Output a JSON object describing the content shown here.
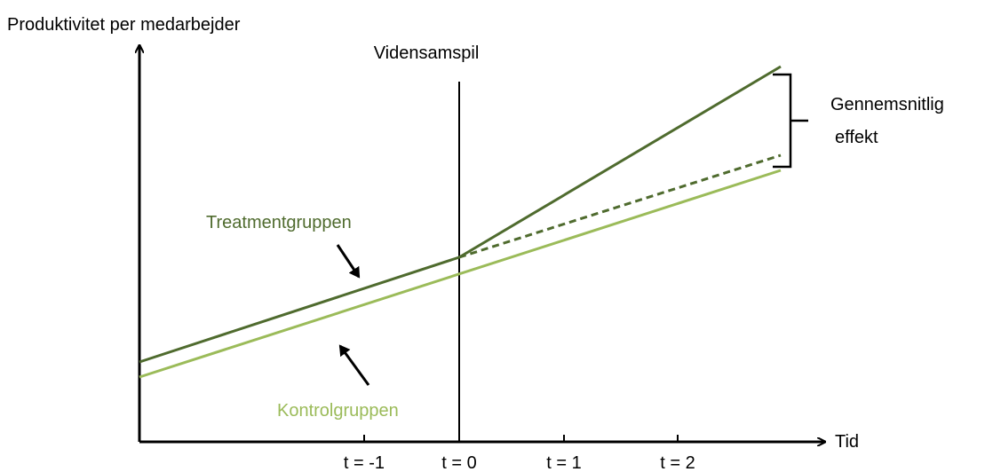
{
  "axes": {
    "y_label": "Produktivitet per medarbejder",
    "x_label": "Tid",
    "ticks": [
      "t = -1",
      "t = 0",
      "t = 1",
      "t = 2"
    ]
  },
  "event_label": "Vidensamspil",
  "groups": {
    "treatment": "Treatmentgruppen",
    "control": "Kontrolgruppen"
  },
  "effect_label": [
    "Gennemsnitlig",
    "effekt"
  ]
}
